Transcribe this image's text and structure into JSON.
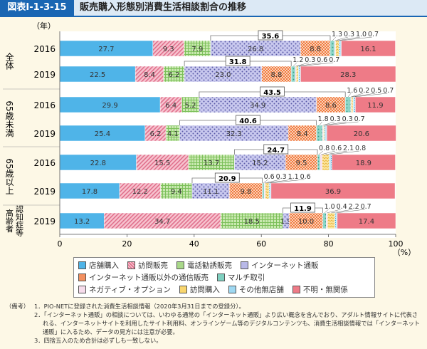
{
  "header": {
    "figure_id": "図表Ⅰ-1-3-15",
    "title": "販売購入形態別消費生活相談割合の推移"
  },
  "chart_data": {
    "type": "bar",
    "orientation": "horizontal-stacked-100",
    "year_axis_label": "（年）",
    "xlabel": "（%）",
    "xlim": [
      0,
      100
    ],
    "xticks": [
      "0",
      "20",
      "40",
      "60",
      "80",
      "100"
    ],
    "legend_position": "bottom",
    "series": [
      {
        "name": "店舗購入",
        "color": "#4fb4e8"
      },
      {
        "name": "訪問販売",
        "color": "#f2a0b4"
      },
      {
        "name": "電話勧誘販売",
        "color": "#a9d889"
      },
      {
        "name": "インターネット通販",
        "color": "#b9b9e8"
      },
      {
        "name": "インターネット通販以外の通信販売",
        "color": "#f39060"
      },
      {
        "name": "マルチ取引",
        "color": "#7fd0c0"
      },
      {
        "name": "ネガティブ・オプション",
        "color": "#f7dcec"
      },
      {
        "name": "訪問購入",
        "color": "#f9d66e"
      },
      {
        "name": "その他無店舗",
        "color": "#9ed8f2"
      },
      {
        "name": "不明・無関係",
        "color": "#ee7b87"
      }
    ],
    "groups": [
      {
        "label": "全体",
        "rows": [
          {
            "year": "2016",
            "values": [
              27.7,
              9.3,
              7.9,
              26.8,
              8.8,
              1.3,
              0.3,
              1.0,
              0.7,
              16.1
            ],
            "bracket": "35.6"
          },
          {
            "year": "2019",
            "values": [
              22.5,
              8.4,
              6.2,
              23.0,
              8.8,
              1.2,
              0.3,
              0.6,
              0.7,
              28.3
            ],
            "bracket": "31.8"
          }
        ]
      },
      {
        "label": "65歳未満",
        "rows": [
          {
            "year": "2016",
            "values": [
              29.9,
              6.4,
              5.2,
              34.9,
              8.6,
              1.6,
              0.2,
              0.5,
              0.7,
              11.9
            ],
            "bracket": "43.5"
          },
          {
            "year": "2019",
            "values": [
              25.4,
              6.2,
              4.1,
              32.3,
              8.4,
              1.8,
              0.3,
              0.3,
              0.7,
              20.6
            ],
            "bracket": "40.6"
          }
        ]
      },
      {
        "label": "65歳以上",
        "rows": [
          {
            "year": "2016",
            "values": [
              22.8,
              15.5,
              13.7,
              15.2,
              9.5,
              0.8,
              0.6,
              2.1,
              0.8,
              18.9
            ],
            "bracket": "24.7"
          },
          {
            "year": "2019",
            "values": [
              17.8,
              12.2,
              9.4,
              11.1,
              9.8,
              0.6,
              0.3,
              1.1,
              0.6,
              36.9
            ],
            "bracket": "20.9"
          }
        ]
      },
      {
        "label": "高齢者 認知症等",
        "rows": [
          {
            "year": "2019",
            "values": [
              13.2,
              34.7,
              18.5,
              1.9,
              10.0,
              1.0,
              0.4,
              2.2,
              0.7,
              17.4
            ],
            "bracket": "11.9"
          }
        ]
      }
    ]
  },
  "notes": {
    "label": "（備考）",
    "items": [
      "1．PIO-NETに登録された消費生活相談情報（2020年3月31日までの登録分）。",
      "2．「インターネット通販」の相談については、いわゆる通常の「インターネット通販」より広い概念を含んでおり、アダルト情報サイトに代表される、インターネットサイトを利用したサイト利用料、オンラインゲーム等のデジタルコンテンツも、消費生活相談情報では「インターネット通販」に入るため、データの見方には注意が必要。",
      "3．四捨五入のため合計は必ずしも一致しない。"
    ]
  }
}
